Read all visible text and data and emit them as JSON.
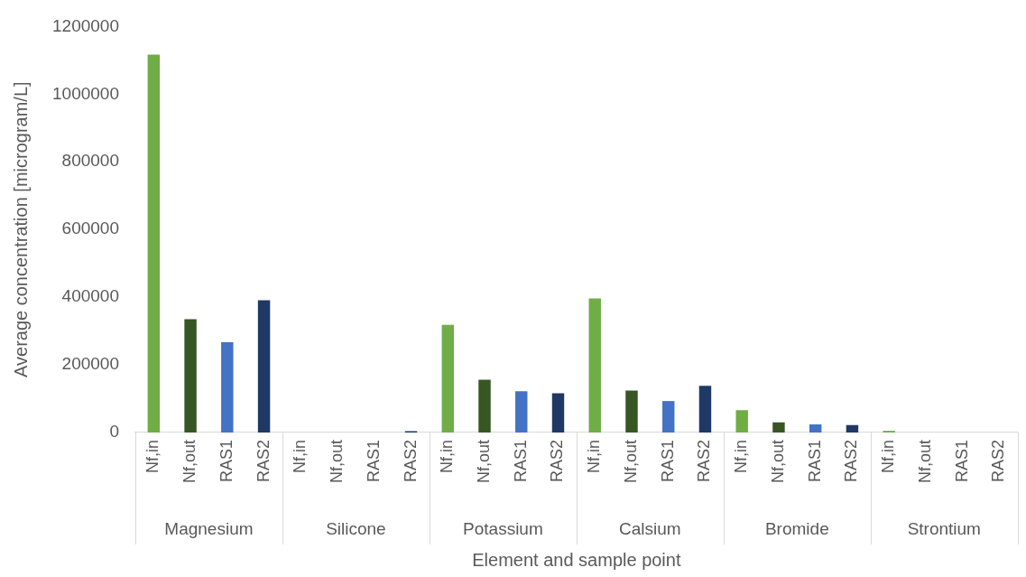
{
  "chart_data": {
    "type": "bar",
    "xlabel": "Element and sample point",
    "ylabel": "Average concentration [microgram/L]",
    "categories": [
      "Nf,in",
      "Nf,out",
      "RAS1",
      "RAS2",
      "Nf,in",
      "Nf,out",
      "RAS1",
      "RAS2",
      "Nf,in",
      "Nf,out",
      "RAS1",
      "RAS2",
      "Nf,in",
      "Nf,out",
      "RAS1",
      "RAS2",
      "Nf,in",
      "Nf,out",
      "RAS1",
      "RAS2",
      "Nf,in",
      "Nf,out",
      "RAS1",
      "RAS2"
    ],
    "values": [
      1117000,
      335000,
      267000,
      391000,
      0,
      0,
      0,
      4000,
      318000,
      156000,
      122000,
      116000,
      396000,
      124000,
      93000,
      138000,
      66000,
      30000,
      24000,
      22000,
      5000,
      null,
      0,
      null
    ],
    "colors": [
      "#70ad47",
      "#375623",
      "#4472c4",
      "#203864",
      "#70ad47",
      "#375623",
      "#4472c4",
      "#203864",
      "#70ad47",
      "#375623",
      "#4472c4",
      "#203864",
      "#70ad47",
      "#375623",
      "#4472c4",
      "#203864",
      "#70ad47",
      "#375623",
      "#4472c4",
      "#203864",
      "#70ad47",
      "#375623",
      "#4472c4",
      "#203864"
    ],
    "annotations": [
      "Magnesium",
      "Silicone",
      "Potassium",
      "Calsium",
      "Bromide",
      "Strontium"
    ],
    "ylim": [
      0,
      1200000
    ],
    "yticks": [
      0,
      200000,
      400000,
      600000,
      800000,
      1000000,
      1200000
    ],
    "grid": false,
    "legend": false
  }
}
